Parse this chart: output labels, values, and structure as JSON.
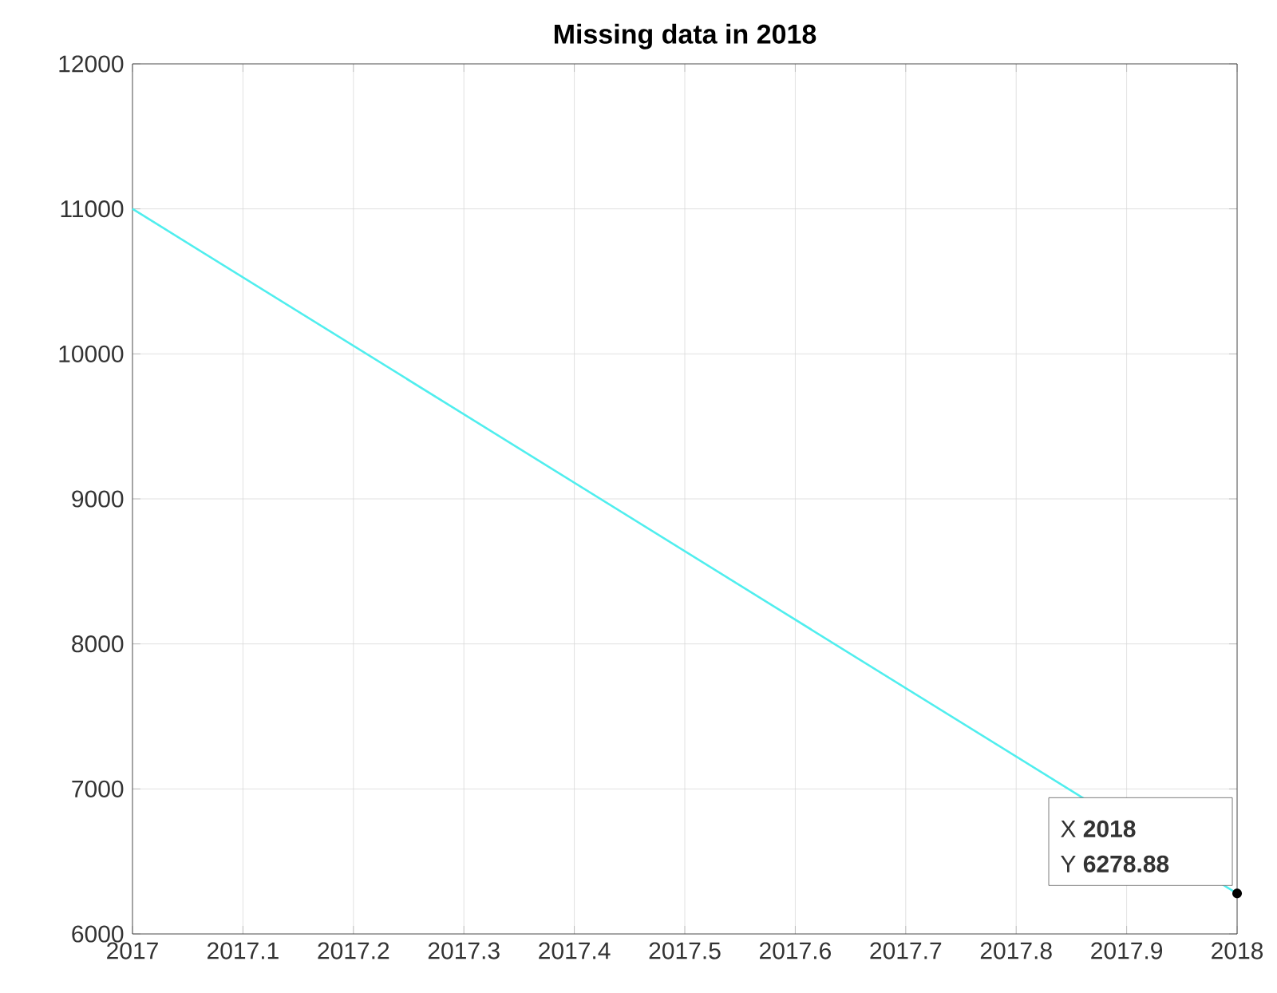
{
  "chart_data": {
    "type": "line",
    "title": "Missing data in 2018",
    "x": [
      2017,
      2018
    ],
    "series": [
      {
        "color": "#50eeee",
        "values": [
          11000,
          6278.88
        ]
      }
    ],
    "xlim": [
      2017,
      2018
    ],
    "xticks": [
      2017,
      2017.1,
      2017.2,
      2017.3,
      2017.4,
      2017.5,
      2017.6,
      2017.7,
      2017.8,
      2017.9,
      2018
    ],
    "ylim": [
      6000,
      12000
    ],
    "yticks": [
      6000,
      7000,
      8000,
      9000,
      10000,
      11000,
      12000
    ],
    "grid": true,
    "annotations": [
      "X **2018**",
      {
        "text": "Y **6278.88**",
        "x": 2018,
        "y": 6278.88
      }
    ]
  }
}
